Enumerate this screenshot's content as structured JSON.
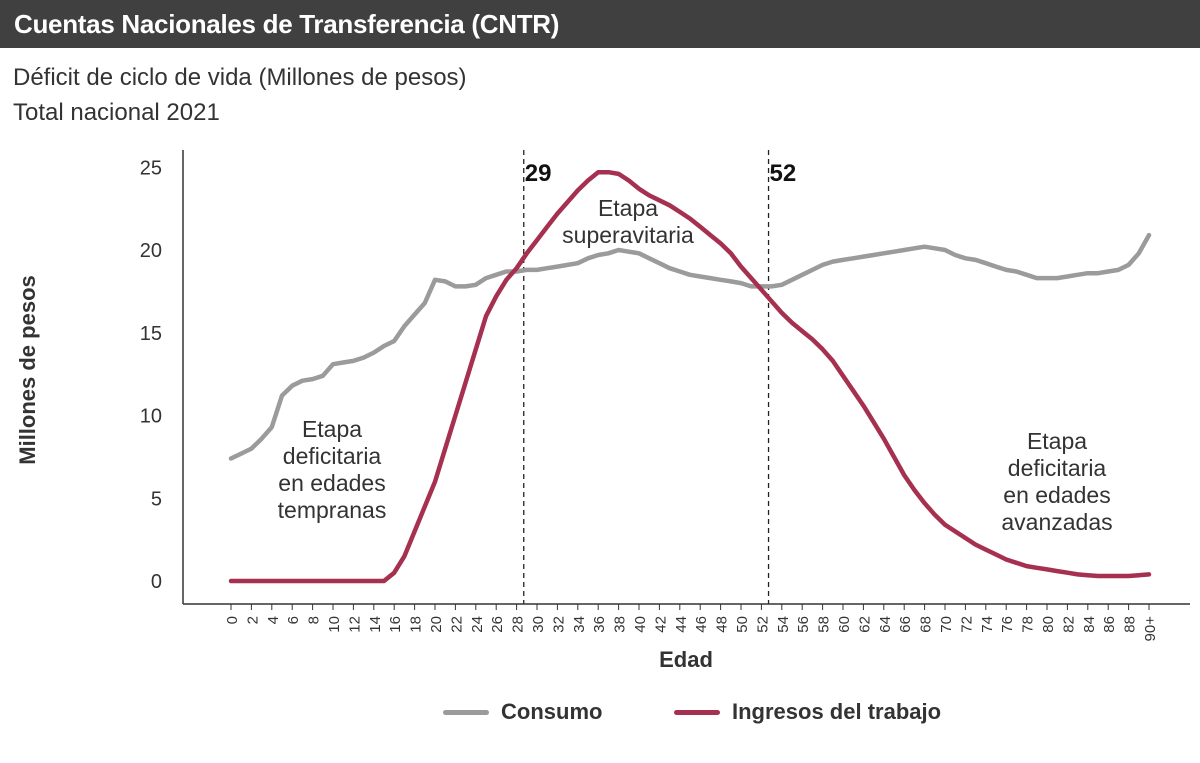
{
  "header": {
    "title": "Cuentas Nacionales de Transferencia (CNTR)"
  },
  "subtitle": {
    "line1": "Déficit de ciclo de vida (Millones de pesos)",
    "line2": "Total nacional 2021"
  },
  "colors": {
    "header_bg": "#404040",
    "consumo": "#9b9b9b",
    "ingresos": "#a6304f",
    "axis": "#333333"
  },
  "chart_data": {
    "type": "line",
    "title": "Déficit de ciclo de vida (Millones de pesos)",
    "subtitle": "Total nacional 2021",
    "xlabel": "Edad",
    "ylabel": "Millones de pesos",
    "ylim": [
      0,
      25
    ],
    "yticks": [
      0,
      5,
      10,
      15,
      20,
      25
    ],
    "x": [
      0,
      1,
      2,
      3,
      4,
      5,
      6,
      7,
      8,
      9,
      10,
      11,
      12,
      13,
      14,
      15,
      16,
      17,
      18,
      19,
      20,
      21,
      22,
      23,
      24,
      25,
      26,
      27,
      28,
      29,
      30,
      31,
      32,
      33,
      34,
      35,
      36,
      37,
      38,
      39,
      40,
      41,
      42,
      43,
      44,
      45,
      46,
      47,
      48,
      49,
      50,
      51,
      52,
      53,
      54,
      55,
      56,
      57,
      58,
      59,
      60,
      61,
      62,
      63,
      64,
      65,
      66,
      67,
      68,
      69,
      70,
      71,
      72,
      73,
      74,
      75,
      76,
      77,
      78,
      79,
      80,
      81,
      82,
      83,
      84,
      85,
      86,
      87,
      88,
      89,
      90
    ],
    "xtick_labels": [
      "0",
      "2",
      "4",
      "6",
      "8",
      "10",
      "12",
      "14",
      "16",
      "18",
      "20",
      "22",
      "24",
      "26",
      "28",
      "30",
      "32",
      "34",
      "36",
      "38",
      "40",
      "42",
      "44",
      "46",
      "48",
      "50",
      "52",
      "54",
      "56",
      "58",
      "60",
      "62",
      "64",
      "66",
      "68",
      "70",
      "72",
      "74",
      "76",
      "78",
      "80",
      "82",
      "84",
      "86",
      "88",
      "90+"
    ],
    "series": [
      {
        "name": "Consumo",
        "values": [
          7.4,
          7.7,
          8.0,
          8.6,
          9.3,
          11.2,
          11.8,
          12.1,
          12.2,
          12.4,
          13.1,
          13.2,
          13.3,
          13.5,
          13.8,
          14.2,
          14.5,
          15.4,
          16.1,
          16.8,
          18.2,
          18.1,
          17.8,
          17.8,
          17.9,
          18.3,
          18.5,
          18.7,
          18.7,
          18.8,
          18.8,
          18.9,
          19.0,
          19.1,
          19.2,
          19.5,
          19.7,
          19.8,
          20.0,
          19.9,
          19.8,
          19.5,
          19.2,
          18.9,
          18.7,
          18.5,
          18.4,
          18.3,
          18.2,
          18.1,
          18.0,
          17.8,
          17.8,
          17.8,
          17.9,
          18.2,
          18.5,
          18.8,
          19.1,
          19.3,
          19.4,
          19.5,
          19.6,
          19.7,
          19.8,
          19.9,
          20.0,
          20.1,
          20.2,
          20.1,
          20.0,
          19.7,
          19.5,
          19.4,
          19.2,
          19.0,
          18.8,
          18.7,
          18.5,
          18.3,
          18.3,
          18.3,
          18.4,
          18.5,
          18.6,
          18.6,
          18.7,
          18.8,
          19.1,
          19.8,
          20.9
        ]
      },
      {
        "name": "Ingresos del trabajo",
        "values": [
          0,
          0,
          0,
          0,
          0,
          0,
          0,
          0,
          0,
          0,
          0,
          0,
          0,
          0,
          0,
          0,
          0.5,
          1.5,
          3.0,
          4.5,
          6.0,
          8.0,
          10.0,
          12.0,
          14.0,
          16.0,
          17.2,
          18.2,
          18.9,
          19.8,
          20.6,
          21.4,
          22.2,
          22.9,
          23.6,
          24.2,
          24.7,
          24.7,
          24.6,
          24.2,
          23.7,
          23.3,
          23.0,
          22.7,
          22.3,
          21.9,
          21.4,
          20.9,
          20.4,
          19.8,
          19.0,
          18.3,
          17.6,
          16.9,
          16.2,
          15.6,
          15.1,
          14.6,
          14.0,
          13.3,
          12.4,
          11.5,
          10.6,
          9.6,
          8.6,
          7.5,
          6.4,
          5.5,
          4.7,
          4.0,
          3.4,
          3.0,
          2.6,
          2.2,
          1.9,
          1.6,
          1.3,
          1.1,
          0.9,
          0.8,
          0.7,
          0.6,
          0.5,
          0.4,
          0.35,
          0.3,
          0.3,
          0.3,
          0.3,
          0.35,
          0.4
        ]
      }
    ],
    "reference_lines": [
      {
        "x": 29,
        "label": "29"
      },
      {
        "x": 52,
        "label": "52"
      }
    ],
    "annotations": [
      {
        "lines": [
          "Etapa",
          "deficitaria",
          "en edades",
          "tempranas"
        ]
      },
      {
        "lines": [
          "Etapa",
          "superavitaria"
        ]
      },
      {
        "lines": [
          "Etapa",
          "deficitaria",
          "en edades",
          "avanzadas"
        ]
      }
    ],
    "legend": [
      {
        "name": "Consumo",
        "color": "#9b9b9b"
      },
      {
        "name": "Ingresos del trabajo",
        "color": "#a6304f"
      }
    ],
    "legend_position": "bottom"
  }
}
